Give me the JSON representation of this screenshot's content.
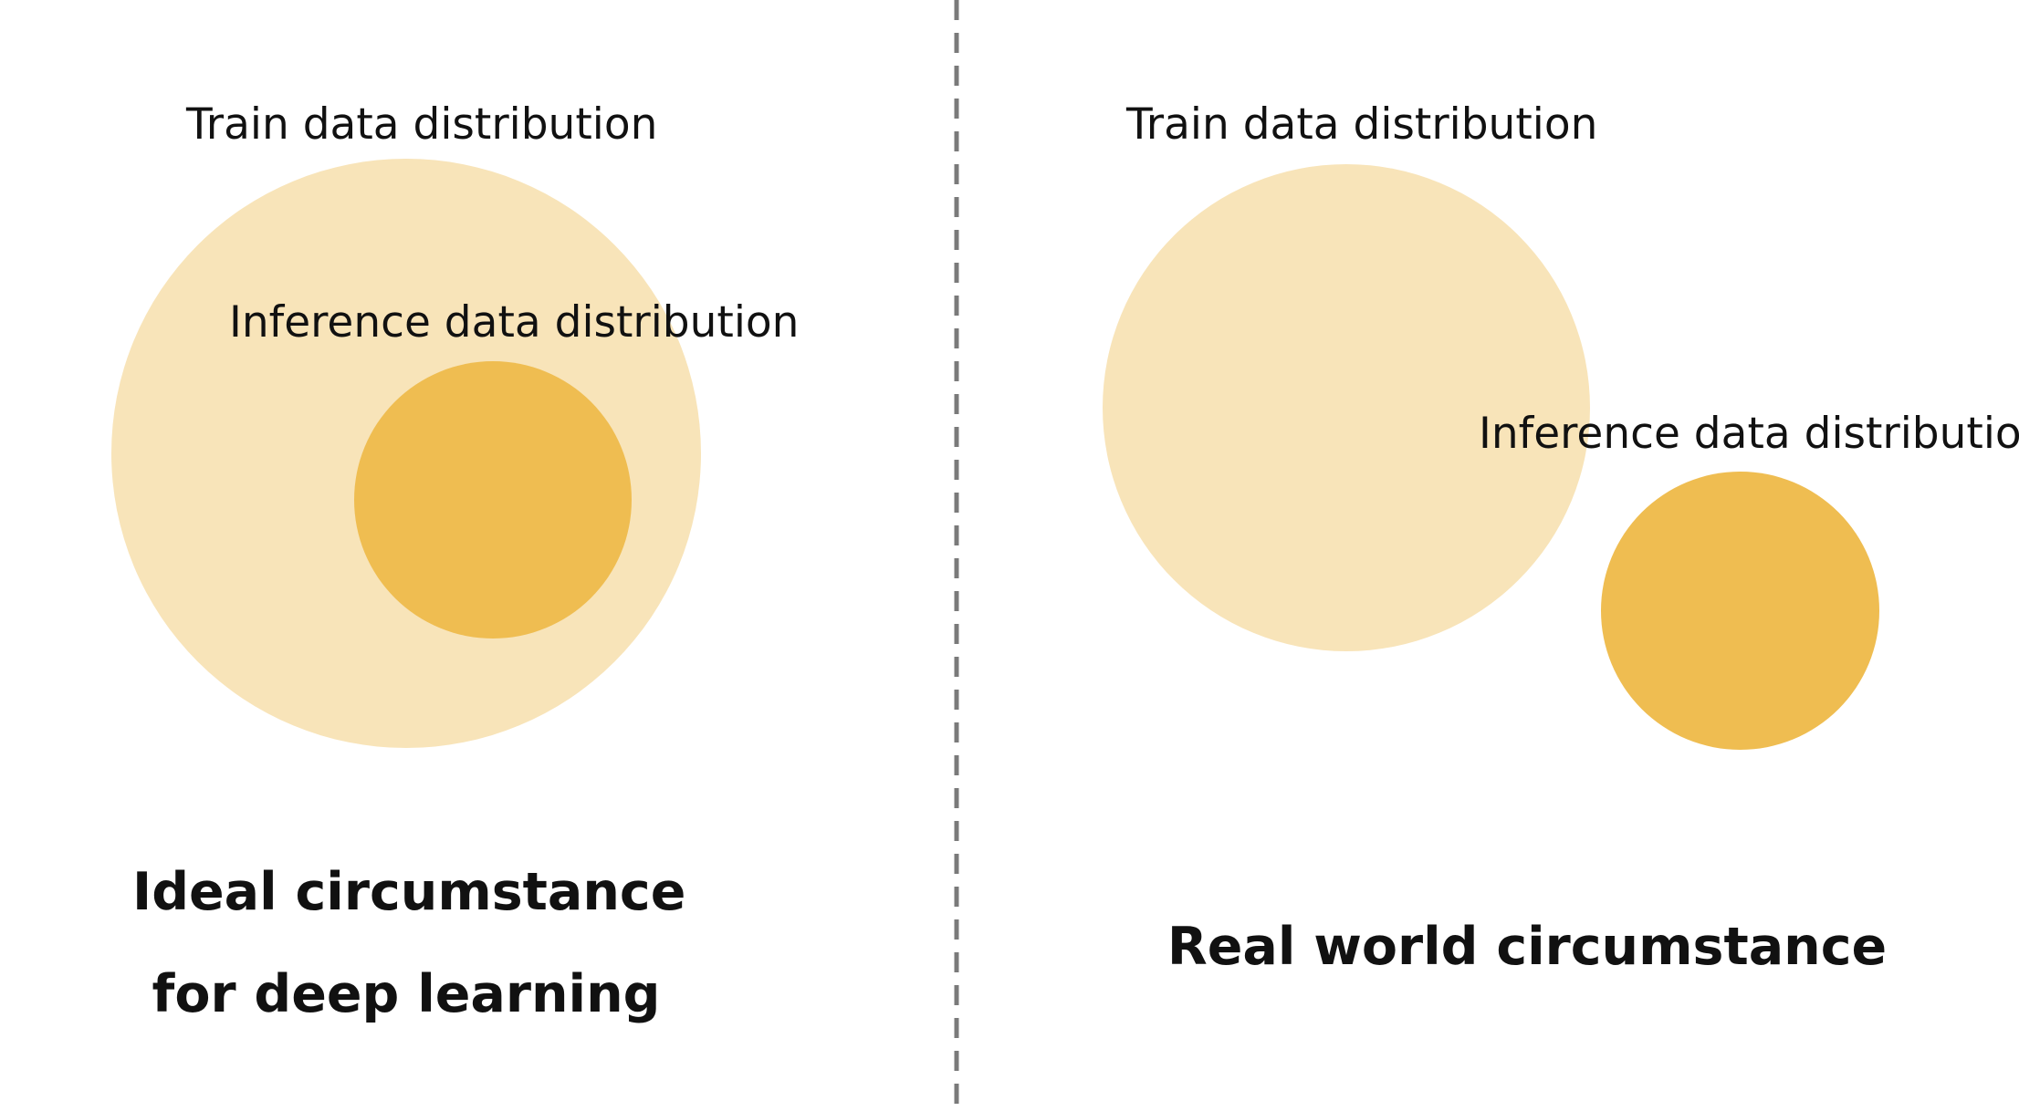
{
  "colors": {
    "train_fill": "#f8e4b9",
    "inference_fill": "#efbd51",
    "divider": "#7a7a7a",
    "text": "#111111",
    "background": "#ffffff"
  },
  "left_panel": {
    "train_label": "Train data distribution",
    "inference_label": "Inference data distribution",
    "caption_line1": "Ideal circumstance",
    "caption_line2": "for deep learning"
  },
  "right_panel": {
    "train_label": "Train data distribution",
    "inference_label": "Inference data distribution",
    "caption": "Real world circumstance"
  }
}
